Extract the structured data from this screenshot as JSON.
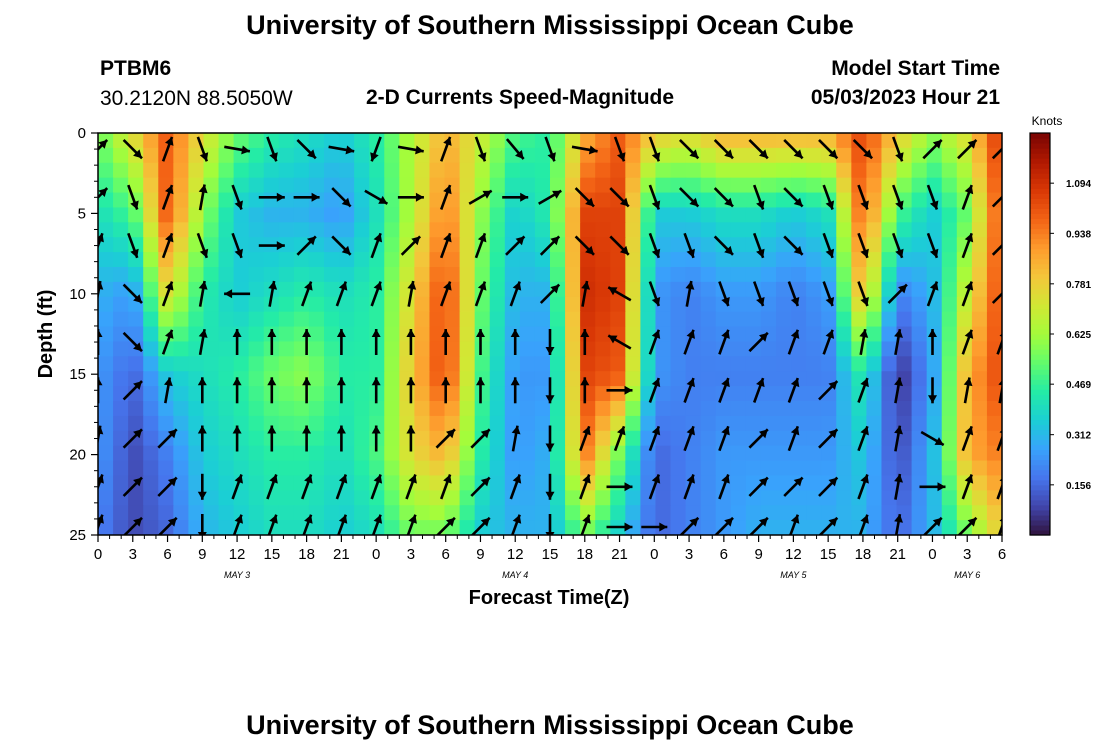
{
  "page": {
    "title_top": "University of Southern Mississippi Ocean Cube",
    "title_bottom": "University of Southern Mississippi Ocean Cube",
    "station_id": "PTBM6",
    "station_coords": "30.2120N  88.5050W",
    "model_start_label": "Model Start Time",
    "model_start_value": "05/03/2023 Hour 21"
  },
  "chart_data": {
    "type": "heatmap",
    "title": "2-D Currents Speed-Magnitude",
    "xlabel": "Forecast Time(Z)",
    "ylabel": "Depth (ft)",
    "units_label": "Knots",
    "xlim": [
      0,
      78
    ],
    "ylim": [
      25,
      0
    ],
    "x_ticks": [
      0,
      3,
      6,
      9,
      12,
      15,
      18,
      21,
      24,
      27,
      30,
      33,
      36,
      39,
      42,
      45,
      48,
      51,
      54,
      57,
      60,
      63,
      66,
      69,
      72,
      75,
      78
    ],
    "x_tick_labels": [
      "0",
      "3",
      "6",
      "9",
      "12",
      "15",
      "18",
      "21",
      "0",
      "3",
      "6",
      "9",
      "12",
      "15",
      "18",
      "21",
      "0",
      "3",
      "6",
      "9",
      "12",
      "15",
      "18",
      "21",
      "0",
      "3",
      "6"
    ],
    "y_ticks": [
      0,
      5,
      10,
      15,
      20,
      25
    ],
    "y_tick_labels": [
      "0",
      "5",
      "10",
      "15",
      "20",
      "25"
    ],
    "date_labels": [
      {
        "text": "MAY 3",
        "x": 12
      },
      {
        "text": "MAY 4",
        "x": 36
      },
      {
        "text": "MAY 5",
        "x": 60
      },
      {
        "text": "MAY 6",
        "x": 75
      }
    ],
    "colorbar": {
      "min": 0,
      "max": 1.25,
      "ticks": [
        0.156,
        0.312,
        0.469,
        0.625,
        0.781,
        0.938,
        1.094
      ],
      "tick_labels": [
        "0.156",
        "0.312",
        "0.469",
        "0.625",
        "0.781",
        "0.938",
        "1.094"
      ],
      "colors": [
        "#30123b",
        "#4145ab",
        "#4675ed",
        "#39a2fc",
        "#1bcfd4",
        "#24eca6",
        "#61fc6c",
        "#a4fc3b",
        "#d1e834",
        "#f3c63a",
        "#fe9b2d",
        "#f36315",
        "#d93806",
        "#b11901",
        "#7a0402"
      ]
    },
    "speed_field": {
      "x_hours": [
        0,
        3,
        6,
        9,
        12,
        15,
        18,
        21,
        24,
        27,
        30,
        33,
        36,
        39,
        42,
        45,
        48,
        51,
        54,
        57,
        60,
        63,
        66,
        69,
        72,
        75,
        78
      ],
      "depths_ft": [
        0,
        5,
        10,
        15,
        20,
        25
      ],
      "values_knots": [
        [
          0.55,
          0.75,
          1.0,
          0.75,
          0.55,
          0.45,
          0.4,
          0.35,
          0.45,
          0.65,
          0.85,
          0.7,
          0.5,
          0.45,
          0.85,
          1.0,
          0.8,
          0.75,
          0.85,
          0.85,
          0.85,
          0.85,
          1.05,
          0.8,
          0.6,
          0.75,
          1.1
        ],
        [
          0.4,
          0.5,
          1.0,
          0.6,
          0.35,
          0.3,
          0.3,
          0.25,
          0.4,
          0.65,
          0.95,
          0.6,
          0.35,
          0.45,
          1.05,
          1.05,
          0.35,
          0.35,
          0.4,
          0.4,
          0.35,
          0.4,
          1.0,
          0.5,
          0.35,
          0.55,
          1.05
        ],
        [
          0.3,
          0.25,
          0.75,
          0.45,
          0.35,
          0.4,
          0.45,
          0.4,
          0.45,
          0.75,
          1.05,
          0.55,
          0.3,
          0.3,
          1.1,
          1.05,
          0.25,
          0.2,
          0.25,
          0.25,
          0.2,
          0.25,
          0.85,
          0.2,
          0.3,
          0.7,
          1.05
        ],
        [
          0.25,
          0.15,
          0.35,
          0.4,
          0.45,
          0.55,
          0.6,
          0.45,
          0.45,
          0.8,
          1.05,
          0.5,
          0.25,
          0.25,
          1.05,
          1.0,
          0.25,
          0.2,
          0.2,
          0.2,
          0.2,
          0.2,
          0.45,
          0.05,
          0.25,
          0.85,
          1.05
        ],
        [
          0.25,
          0.1,
          0.2,
          0.35,
          0.4,
          0.45,
          0.45,
          0.4,
          0.5,
          0.75,
          0.85,
          0.45,
          0.25,
          0.3,
          0.95,
          0.55,
          0.15,
          0.2,
          0.25,
          0.25,
          0.25,
          0.25,
          0.35,
          0.1,
          0.3,
          0.85,
          0.95
        ],
        [
          0.2,
          0.1,
          0.15,
          0.3,
          0.35,
          0.4,
          0.4,
          0.35,
          0.4,
          0.55,
          0.55,
          0.35,
          0.3,
          0.3,
          0.55,
          0.35,
          0.15,
          0.2,
          0.25,
          0.3,
          0.3,
          0.3,
          0.3,
          0.15,
          0.3,
          0.55,
          0.8
        ]
      ]
    },
    "vectors": {
      "x_hours": [
        0,
        3,
        6,
        9,
        12,
        15,
        18,
        21,
        24,
        27,
        30,
        33,
        36,
        39,
        42,
        45,
        48,
        51,
        54,
        57,
        60,
        63,
        66,
        69,
        72,
        75,
        78
      ],
      "depths_ft": [
        1,
        4,
        7,
        10,
        13,
        16,
        19,
        22,
        24.5
      ],
      "directions_deg": [
        [
          45,
          135,
          20,
          160,
          100,
          160,
          135,
          100,
          200,
          100,
          20,
          160,
          140,
          160,
          100,
          160,
          160,
          135,
          135,
          135,
          135,
          135,
          135,
          160,
          45,
          45,
          45
        ],
        [
          45,
          160,
          20,
          10,
          160,
          90,
          90,
          135,
          120,
          90,
          20,
          60,
          90,
          60,
          135,
          135,
          160,
          135,
          135,
          160,
          135,
          160,
          160,
          160,
          160,
          20,
          45
        ],
        [
          20,
          160,
          20,
          160,
          160,
          90,
          45,
          135,
          20,
          45,
          20,
          20,
          45,
          45,
          135,
          135,
          160,
          160,
          135,
          160,
          135,
          160,
          160,
          160,
          160,
          20,
          45
        ],
        [
          10,
          135,
          20,
          10,
          270,
          10,
          20,
          20,
          20,
          10,
          20,
          20,
          20,
          45,
          10,
          300,
          160,
          10,
          160,
          160,
          160,
          160,
          160,
          45,
          20,
          20,
          45
        ],
        [
          0,
          135,
          20,
          10,
          0,
          0,
          0,
          0,
          0,
          0,
          0,
          0,
          0,
          180,
          0,
          300,
          20,
          20,
          20,
          45,
          20,
          20,
          10,
          10,
          0,
          20,
          20
        ],
        [
          0,
          45,
          10,
          0,
          0,
          0,
          0,
          0,
          0,
          0,
          0,
          0,
          0,
          180,
          0,
          90,
          20,
          20,
          20,
          20,
          20,
          45,
          20,
          10,
          180,
          10,
          10
        ],
        [
          10,
          45,
          45,
          0,
          0,
          0,
          0,
          0,
          0,
          0,
          45,
          45,
          10,
          180,
          20,
          20,
          20,
          20,
          20,
          45,
          20,
          45,
          20,
          10,
          120,
          20,
          20
        ],
        [
          20,
          45,
          45,
          180,
          20,
          20,
          20,
          20,
          20,
          20,
          20,
          45,
          20,
          180,
          20,
          90,
          20,
          20,
          20,
          45,
          45,
          45,
          20,
          10,
          90,
          20,
          20
        ],
        [
          20,
          45,
          45,
          180,
          20,
          20,
          20,
          20,
          20,
          20,
          45,
          45,
          20,
          180,
          20,
          90,
          90,
          45,
          45,
          45,
          20,
          45,
          20,
          10,
          45,
          45,
          20
        ]
      ]
    }
  }
}
